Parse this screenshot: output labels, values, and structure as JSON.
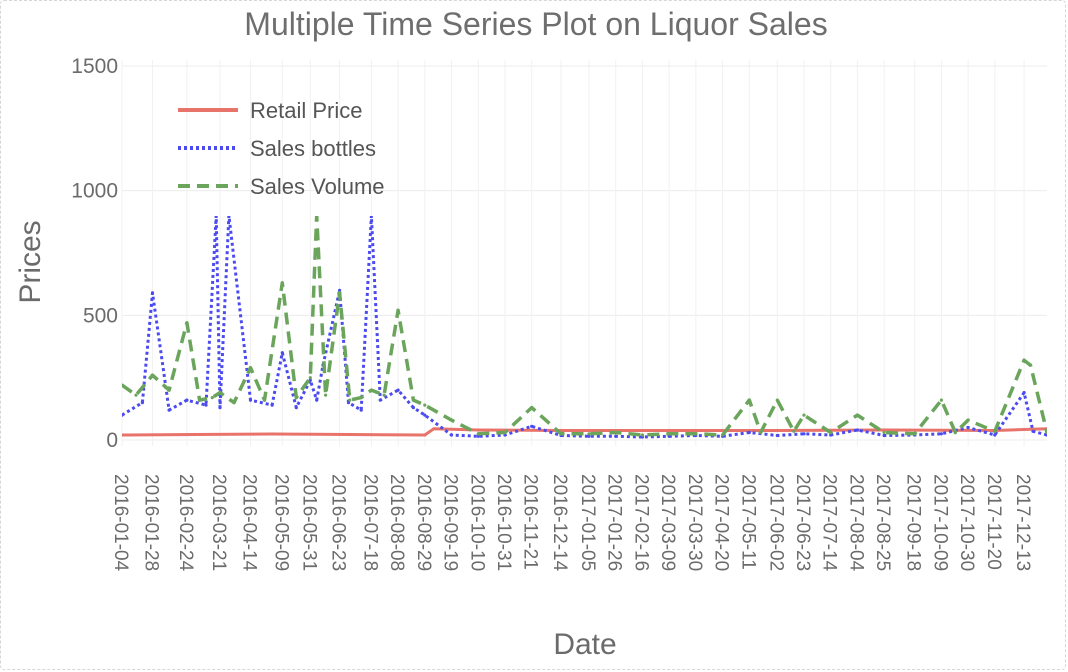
{
  "chart_data": {
    "type": "line",
    "title": "Multiple Time Series Plot on Liquor Sales",
    "xlabel": "Date",
    "ylabel": "Prices",
    "ylim": [
      -50,
      1550
    ],
    "yticks": [
      0,
      500,
      1000,
      1500
    ],
    "ytick_labels": [
      "0",
      "500",
      "1000",
      "1500"
    ],
    "grid": true,
    "legend_position": "top-left",
    "x_range": [
      "2016-01-04",
      "2017-12-31"
    ],
    "xtick_labels": [
      "2016-01-04",
      "2016-01-28",
      "2016-02-24",
      "2016-03-21",
      "2016-04-14",
      "2016-05-09",
      "2016-05-31",
      "2016-06-23",
      "2016-07-18",
      "2016-08-08",
      "2016-08-29",
      "2016-09-19",
      "2016-10-10",
      "2016-10-31",
      "2016-11-21",
      "2016-12-14",
      "2017-01-05",
      "2017-01-26",
      "2017-02-16",
      "2017-03-09",
      "2017-03-30",
      "2017-04-20",
      "2017-05-11",
      "2017-06-02",
      "2017-06-23",
      "2017-07-14",
      "2017-08-04",
      "2017-08-25",
      "2017-09-18",
      "2017-10-09",
      "2017-10-30",
      "2017-11-20",
      "2017-12-13"
    ],
    "series": [
      {
        "name": "Retail Price",
        "color": "#e8736b",
        "dash": "solid",
        "x": [
          "2016-01-04",
          "2016-03-01",
          "2016-05-01",
          "2016-07-01",
          "2016-08-29",
          "2016-09-05",
          "2016-10-10",
          "2016-12-14",
          "2017-03-09",
          "2017-06-02",
          "2017-08-25",
          "2017-11-20",
          "2017-12-31"
        ],
        "values": [
          20,
          22,
          24,
          22,
          20,
          45,
          40,
          38,
          38,
          38,
          40,
          38,
          45
        ]
      },
      {
        "name": "Sales bottles",
        "color": "#4b4bf0",
        "dash": "dot",
        "x": [
          "2016-01-04",
          "2016-01-20",
          "2016-01-28",
          "2016-02-10",
          "2016-02-24",
          "2016-03-10",
          "2016-03-18",
          "2016-03-21",
          "2016-03-28",
          "2016-04-14",
          "2016-05-01",
          "2016-05-09",
          "2016-05-20",
          "2016-05-31",
          "2016-06-05",
          "2016-06-10",
          "2016-06-23",
          "2016-06-30",
          "2016-07-10",
          "2016-07-18",
          "2016-07-25",
          "2016-08-08",
          "2016-08-20",
          "2016-08-29",
          "2016-09-19",
          "2016-10-10",
          "2016-10-31",
          "2016-11-21",
          "2016-12-14",
          "2017-01-05",
          "2017-01-26",
          "2017-02-16",
          "2017-03-09",
          "2017-03-30",
          "2017-04-20",
          "2017-05-11",
          "2017-06-02",
          "2017-06-23",
          "2017-07-14",
          "2017-08-04",
          "2017-08-25",
          "2017-09-18",
          "2017-10-09",
          "2017-10-30",
          "2017-11-20",
          "2017-12-13",
          "2017-12-20",
          "2017-12-31"
        ],
        "values": [
          100,
          150,
          590,
          120,
          160,
          140,
          900,
          130,
          900,
          160,
          140,
          350,
          130,
          240,
          160,
          300,
          600,
          150,
          120,
          900,
          160,
          200,
          130,
          100,
          20,
          15,
          20,
          55,
          18,
          15,
          15,
          12,
          15,
          18,
          15,
          30,
          18,
          25,
          20,
          40,
          18,
          20,
          25,
          50,
          20,
          190,
          35,
          20
        ]
      },
      {
        "name": "Sales Volume",
        "color": "#6aa55b",
        "dash": "dash",
        "x": [
          "2016-01-04",
          "2016-01-15",
          "2016-01-28",
          "2016-02-10",
          "2016-02-24",
          "2016-03-05",
          "2016-03-15",
          "2016-03-21",
          "2016-04-01",
          "2016-04-14",
          "2016-04-25",
          "2016-05-09",
          "2016-05-20",
          "2016-05-31",
          "2016-06-05",
          "2016-06-12",
          "2016-06-23",
          "2016-07-01",
          "2016-07-10",
          "2016-07-18",
          "2016-07-28",
          "2016-08-08",
          "2016-08-20",
          "2016-08-29",
          "2016-09-19",
          "2016-10-10",
          "2016-10-31",
          "2016-11-21",
          "2016-12-14",
          "2017-01-05",
          "2017-01-26",
          "2017-02-16",
          "2017-03-09",
          "2017-03-30",
          "2017-04-20",
          "2017-05-11",
          "2017-05-20",
          "2017-06-02",
          "2017-06-15",
          "2017-06-23",
          "2017-07-14",
          "2017-08-04",
          "2017-08-25",
          "2017-09-18",
          "2017-10-09",
          "2017-10-20",
          "2017-10-30",
          "2017-11-20",
          "2017-12-13",
          "2017-12-18",
          "2017-12-31"
        ],
        "values": [
          220,
          180,
          260,
          200,
          470,
          160,
          170,
          190,
          150,
          290,
          160,
          630,
          170,
          250,
          900,
          180,
          590,
          160,
          170,
          200,
          180,
          520,
          160,
          140,
          80,
          25,
          30,
          130,
          25,
          25,
          30,
          20,
          25,
          25,
          20,
          160,
          30,
          160,
          35,
          100,
          30,
          100,
          30,
          25,
          160,
          30,
          80,
          35,
          320,
          300,
          30
        ]
      }
    ]
  }
}
